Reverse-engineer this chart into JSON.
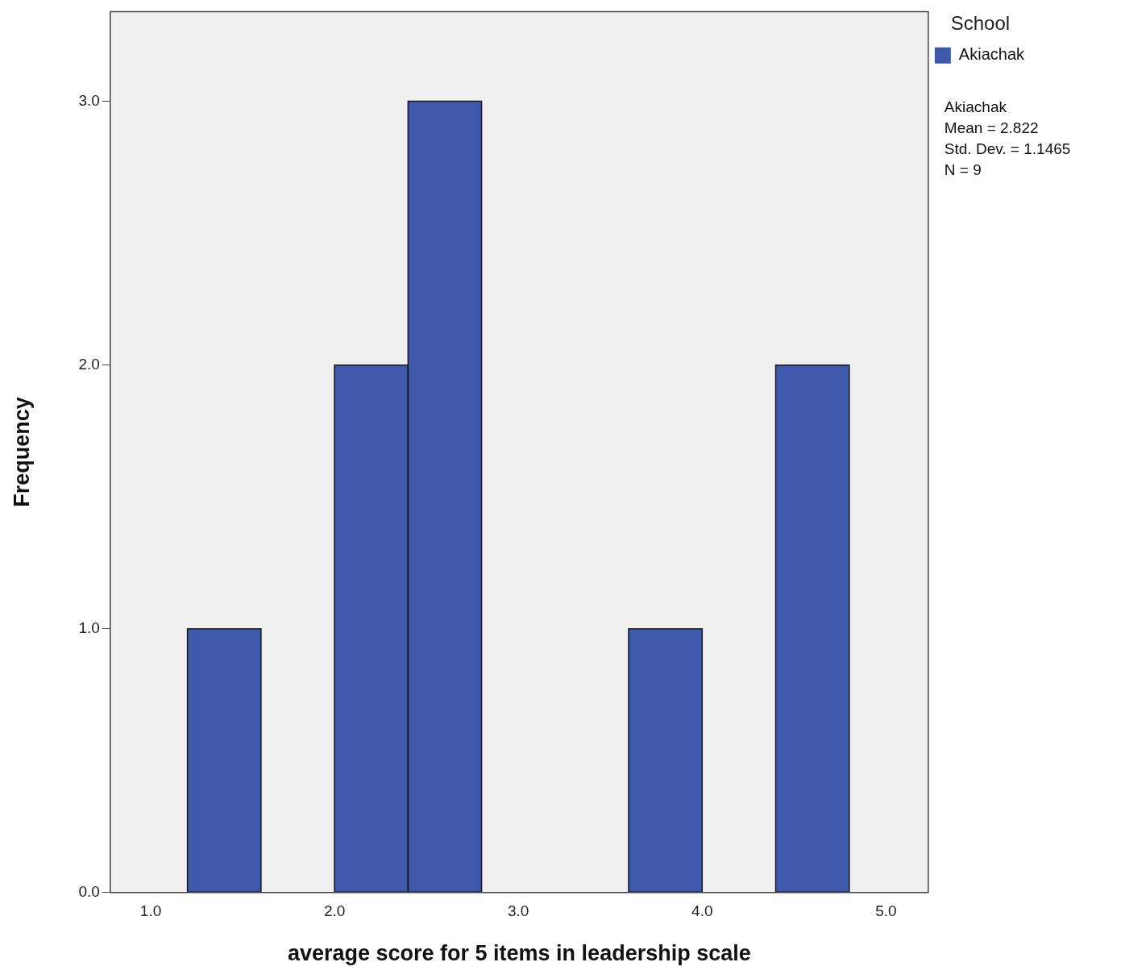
{
  "chart_data": {
    "type": "histogram",
    "xlabel": "average score for 5 items in leadership scale",
    "ylabel": "Frequency",
    "legend_title": "School",
    "bins": [
      1.2,
      1.6,
      2.0,
      2.4,
      2.8,
      3.2,
      3.6,
      4.0,
      4.4,
      4.8
    ],
    "series": [
      {
        "name": "Akiachak",
        "color": "#3e58ac",
        "values": [
          1,
          0,
          2,
          3,
          0,
          0,
          1,
          0,
          2
        ]
      }
    ],
    "xlim": [
      0.78,
      5.23
    ],
    "xticks": [
      {
        "value": 1,
        "label": "1.0"
      },
      {
        "value": 2,
        "label": "2.0"
      },
      {
        "value": 3,
        "label": "3.0"
      },
      {
        "value": 4,
        "label": "4.0"
      },
      {
        "value": 5,
        "label": "5.0"
      }
    ],
    "ylim": [
      0,
      3.34
    ],
    "yticks": [
      {
        "value": 0,
        "label": "0.0"
      },
      {
        "value": 1,
        "label": "1.0"
      },
      {
        "value": 2,
        "label": "2.0"
      },
      {
        "value": 3,
        "label": "3.0"
      }
    ],
    "grid": false,
    "legend": "top right",
    "annotations": [
      "Akiachak",
      "Mean = 2.822",
      "Std. Dev. = 1.1465",
      "N = 9"
    ]
  }
}
